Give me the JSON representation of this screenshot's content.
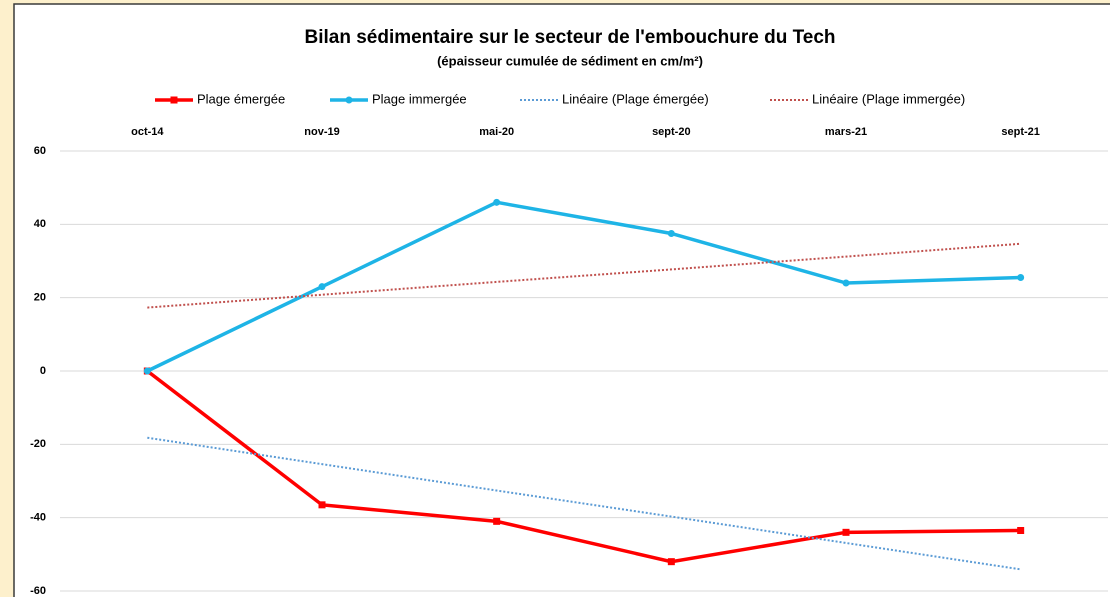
{
  "chart_data": {
    "type": "line",
    "title": "Bilan sédimentaire sur le secteur de l'embouchure du Tech",
    "subtitle": "(épaisseur cumulée de sédiment en cm/m²)",
    "categories": [
      "oct-14",
      "nov-19",
      "mai-20",
      "sept-20",
      "mars-21",
      "sept-21"
    ],
    "series": [
      {
        "name": "Plage émergée",
        "color": "#ff0000",
        "marker": "square",
        "values": [
          0,
          -36.5,
          -41,
          -52,
          -44,
          -43.5
        ]
      },
      {
        "name": "Plage immergée",
        "color": "#1eb4e6",
        "marker": "circle",
        "values": [
          0,
          23,
          46,
          37.5,
          24,
          25.5
        ]
      },
      {
        "name": "Linéaire (Plage émergée)",
        "color": "#5b9bd5",
        "style": "dotted",
        "values": [
          -18.2,
          -25.4,
          -32.6,
          -39.7,
          -46.9,
          -54.1
        ]
      },
      {
        "name": "Linéaire (Plage immergée)",
        "color": "#c0504d",
        "style": "dotted",
        "values": [
          17.3,
          20.8,
          24.3,
          27.7,
          31.2,
          34.7
        ]
      }
    ],
    "ylim": [
      -60,
      60
    ],
    "yticks": [
      -60,
      -40,
      -20,
      0,
      20,
      40,
      60
    ],
    "grid": true,
    "legend": "top"
  }
}
